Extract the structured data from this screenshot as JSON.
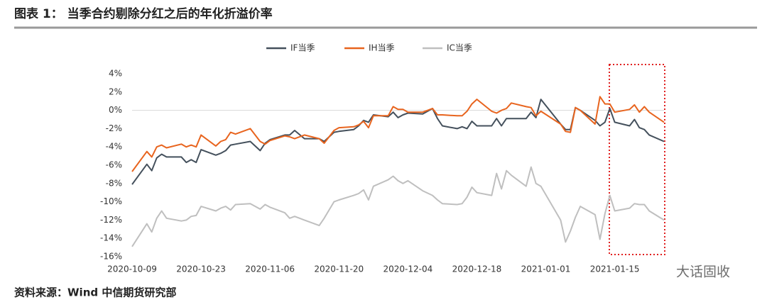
{
  "chart_data": {
    "type": "line",
    "title": "图表 1： 当季合约剔除分红之后的年化折溢价率",
    "source": "资料来源：Wind  中信期货研究部",
    "x": [
      "2020-10-09",
      "2020-10-12",
      "2020-10-13",
      "2020-10-14",
      "2020-10-15",
      "2020-10-16",
      "2020-10-19",
      "2020-10-20",
      "2020-10-21",
      "2020-10-22",
      "2020-10-23",
      "2020-10-26",
      "2020-10-27",
      "2020-10-28",
      "2020-10-29",
      "2020-10-30",
      "2020-11-02",
      "2020-11-04",
      "2020-11-05",
      "2020-11-06",
      "2020-11-09",
      "2020-11-10",
      "2020-11-11",
      "2020-11-13",
      "2020-11-16",
      "2020-11-17",
      "2020-11-19",
      "2020-11-20",
      "2020-11-23",
      "2020-11-24",
      "2020-11-25",
      "2020-11-26",
      "2020-11-27",
      "2020-11-30",
      "2020-12-01",
      "2020-12-02",
      "2020-12-03",
      "2020-12-04",
      "2020-12-07",
      "2020-12-09",
      "2020-12-10",
      "2020-12-11",
      "2020-12-14",
      "2020-12-15",
      "2020-12-16",
      "2020-12-17",
      "2020-12-18",
      "2020-12-21",
      "2020-12-22",
      "2020-12-23",
      "2020-12-24",
      "2020-12-25",
      "2020-12-28",
      "2020-12-29",
      "2020-12-30",
      "2020-12-31",
      "2021-01-04",
      "2021-01-05",
      "2021-01-06",
      "2021-01-07",
      "2021-01-08",
      "2021-01-11",
      "2021-01-12",
      "2021-01-13",
      "2021-01-14",
      "2021-01-15",
      "2021-01-18",
      "2021-01-19",
      "2021-01-20",
      "2021-01-21",
      "2021-01-22",
      "2021-01-25"
    ],
    "series": [
      {
        "name": "IF当季",
        "color": "#44505c",
        "values": [
          -8.1,
          -5.9,
          -6.6,
          -5.2,
          -4.8,
          -5.1,
          -5.1,
          -5.7,
          -5.4,
          -5.7,
          -4.3,
          -4.9,
          -4.7,
          -4.4,
          -3.8,
          -3.7,
          -3.4,
          -4.4,
          -3.6,
          -3.2,
          -2.7,
          -2.7,
          -2.2,
          -3.1,
          -3.1,
          -3.4,
          -2.4,
          -2.3,
          -2.1,
          -1.7,
          -1.1,
          -1.3,
          -0.5,
          -0.7,
          -0.2,
          -0.8,
          -0.5,
          -0.3,
          -0.4,
          0.2,
          -0.9,
          -1.7,
          -2.0,
          -1.8,
          -2.0,
          -1.2,
          -1.7,
          -1.7,
          -0.9,
          -1.7,
          -0.9,
          -0.9,
          -0.9,
          -0.2,
          -0.8,
          1.2,
          -1.5,
          -2.1,
          -2.1,
          0.3,
          0.0,
          -1.1,
          -1.7,
          -1.3,
          0.2,
          -1.3,
          -1.7,
          -1.0,
          -1.9,
          -2.1,
          -2.7,
          -3.4
        ]
      },
      {
        "name": "IH当季",
        "color": "#e8641e",
        "values": [
          -6.7,
          -4.5,
          -5.1,
          -4.0,
          -3.8,
          -4.1,
          -3.7,
          -4.0,
          -3.8,
          -4.0,
          -2.7,
          -3.9,
          -3.4,
          -3.2,
          -2.4,
          -2.6,
          -2.0,
          -3.4,
          -3.7,
          -3.3,
          -2.8,
          -2.9,
          -3.1,
          -2.7,
          -3.1,
          -3.6,
          -2.2,
          -1.9,
          -1.8,
          -1.6,
          -1.2,
          -1.9,
          -0.6,
          -0.6,
          0.4,
          0.1,
          0.1,
          -0.2,
          -0.2,
          0.2,
          -0.5,
          -0.5,
          -0.6,
          -0.6,
          -0.1,
          0.7,
          1.2,
          -0.1,
          -0.3,
          0.0,
          0.2,
          0.8,
          0.4,
          0.3,
          -0.6,
          -0.1,
          -1.5,
          -2.3,
          -2.4,
          0.3,
          0.0,
          -1.5,
          1.5,
          0.7,
          0.7,
          -0.2,
          0.1,
          0.6,
          -0.2,
          0.4,
          -0.2,
          -1.3
        ]
      },
      {
        "name": "IC当季",
        "color": "#bfbfbf",
        "values": [
          -14.9,
          -12.4,
          -13.3,
          -11.8,
          -11.0,
          -11.8,
          -12.1,
          -12.0,
          -11.6,
          -11.5,
          -10.5,
          -11.0,
          -10.7,
          -10.5,
          -10.9,
          -10.3,
          -10.2,
          -10.8,
          -10.3,
          -10.6,
          -11.2,
          -11.8,
          -11.6,
          -12.0,
          -12.6,
          -11.8,
          -10.0,
          -9.8,
          -9.3,
          -9.1,
          -8.7,
          -9.8,
          -8.3,
          -7.6,
          -7.2,
          -7.7,
          -8.0,
          -7.7,
          -8.8,
          -9.3,
          -9.8,
          -10.2,
          -10.3,
          -10.2,
          -9.5,
          -8.4,
          -9.0,
          -9.3,
          -6.9,
          -8.6,
          -6.6,
          -7.1,
          -8.3,
          -6.2,
          -8.0,
          -8.3,
          -12.0,
          -14.4,
          -13.2,
          -11.7,
          -10.5,
          -11.4,
          -14.1,
          -11.3,
          -9.3,
          -11.0,
          -10.7,
          -10.2,
          -10.3,
          -10.3,
          -11.0,
          -12.0
        ]
      }
    ],
    "xlim": [
      "2020-10-09",
      "2021-01-25"
    ],
    "xticks": [
      "2020-10-09",
      "2020-10-23",
      "2020-11-06",
      "2020-11-20",
      "2020-12-04",
      "2020-12-18",
      "2021-01-01",
      "2021-01-15"
    ],
    "ylim": [
      -16,
      4
    ],
    "yticks": [
      {
        "value": 4,
        "label": "4%"
      },
      {
        "value": 2,
        "label": "2%"
      },
      {
        "value": 0,
        "label": "0%"
      },
      {
        "value": -2,
        "label": "-2%"
      },
      {
        "value": -4,
        "label": "-4%"
      },
      {
        "value": -6,
        "label": "-6%"
      },
      {
        "value": -8,
        "label": "-8%"
      },
      {
        "value": -10,
        "label": "-10%"
      },
      {
        "value": -12,
        "label": "-12%"
      },
      {
        "value": -14,
        "label": "-14%"
      },
      {
        "value": -16,
        "label": "-16%"
      }
    ],
    "grid": false,
    "legend": "top"
  },
  "watermark": "大话固收"
}
